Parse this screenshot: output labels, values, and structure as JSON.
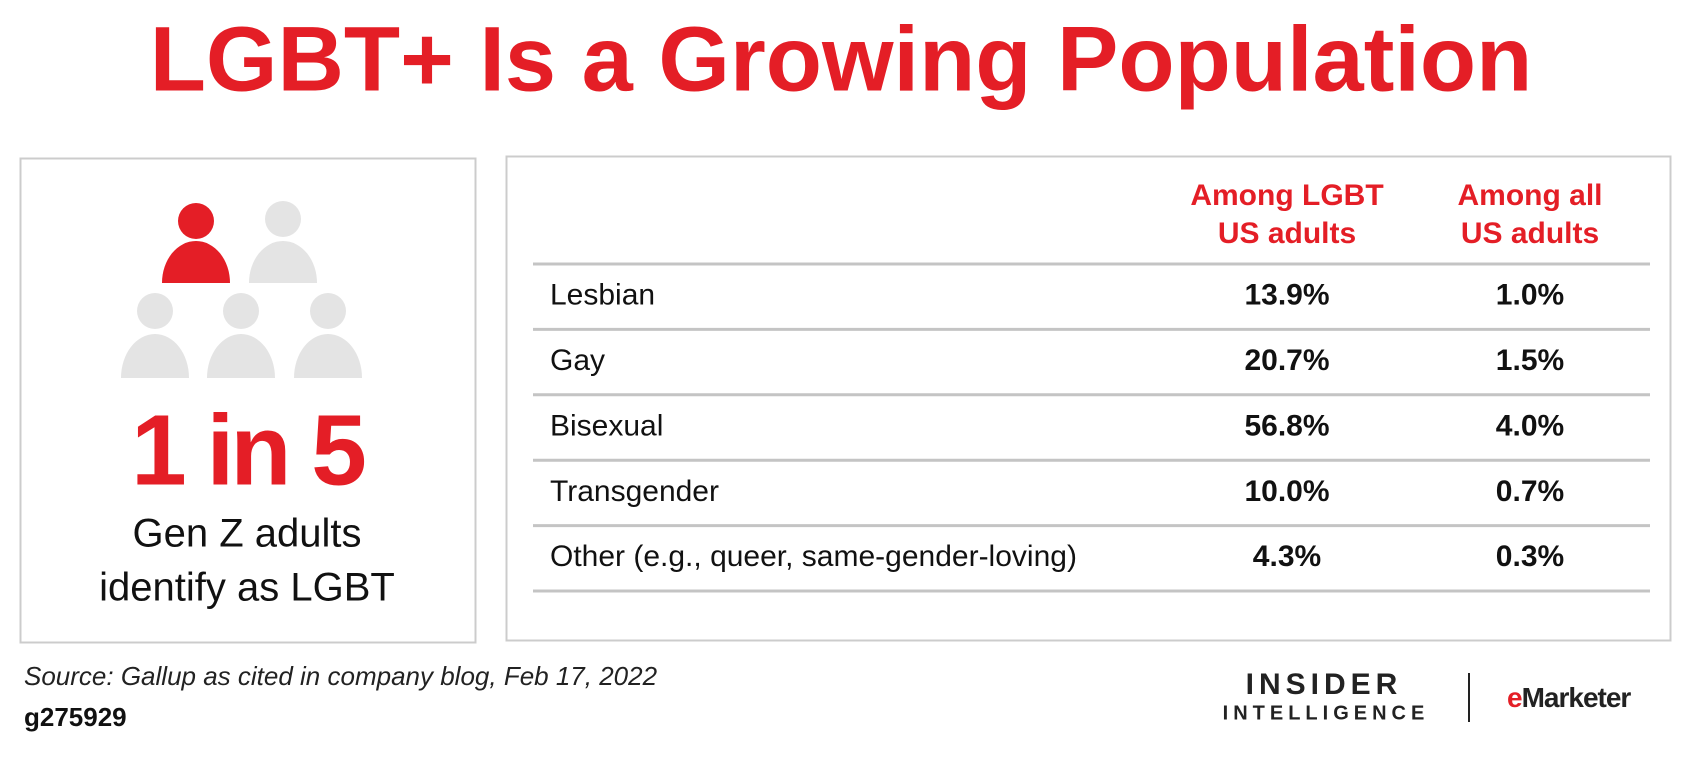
{
  "header": {
    "title": "LGBT+ Is a Growing Population"
  },
  "summary": {
    "headline": "1 in 5",
    "lines": [
      "Gen Z adults",
      "identify as LGBT"
    ]
  },
  "table": {
    "columns": [
      [
        "Among LGBT",
        "US adults"
      ],
      [
        "Among all",
        "US adults"
      ]
    ],
    "rows": [
      [
        "Lesbian",
        "13.9%",
        "1.0%"
      ],
      [
        "Gay",
        "20.7%",
        "1.5%"
      ],
      [
        "Bisexual",
        "56.8%",
        "4.0%"
      ],
      [
        "Transgender",
        "10.0%",
        "0.7%"
      ],
      [
        "Other (e.g., queer, same-gender-loving)",
        "4.3%",
        "0.3%"
      ]
    ]
  },
  "footer": {
    "source": "Source: Gallup as cited in company blog, Feb 17, 2022",
    "id": "g275929"
  },
  "logos": {
    "insider": [
      "INSIDER",
      "INTELLIGENCE"
    ],
    "emarketer": [
      "e",
      "Marketer"
    ]
  }
}
